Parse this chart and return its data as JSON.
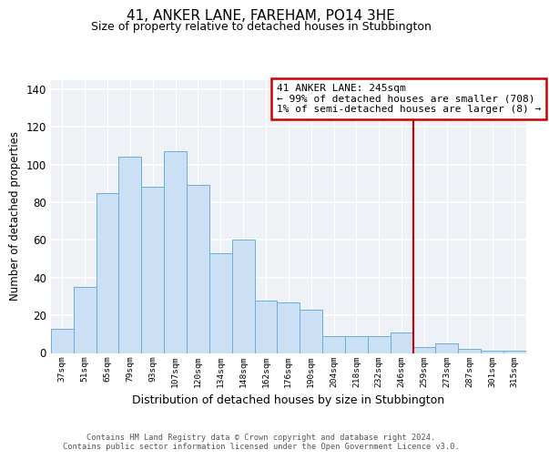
{
  "title": "41, ANKER LANE, FAREHAM, PO14 3HE",
  "subtitle": "Size of property relative to detached houses in Stubbington",
  "xlabel": "Distribution of detached houses by size in Stubbington",
  "ylabel": "Number of detached properties",
  "bar_color": "#cce0f5",
  "bar_edge_color": "#6aaed6",
  "categories": [
    "37sqm",
    "51sqm",
    "65sqm",
    "79sqm",
    "93sqm",
    "107sqm",
    "120sqm",
    "134sqm",
    "148sqm",
    "162sqm",
    "176sqm",
    "190sqm",
    "204sqm",
    "218sqm",
    "232sqm",
    "246sqm",
    "259sqm",
    "273sqm",
    "287sqm",
    "301sqm",
    "315sqm"
  ],
  "values": [
    13,
    35,
    85,
    104,
    88,
    107,
    89,
    53,
    60,
    28,
    27,
    23,
    9,
    9,
    9,
    11,
    3,
    5,
    2,
    1,
    1
  ],
  "vline_x": 15.5,
  "vline_color": "#cc0000",
  "annotation_text": "41 ANKER LANE: 245sqm\n← 99% of detached houses are smaller (708)\n1% of semi-detached houses are larger (8) →",
  "annotation_box_color": "#cc0000",
  "annotation_bg": "#ffffff",
  "ylim": [
    0,
    145
  ],
  "yticks": [
    0,
    20,
    40,
    60,
    80,
    100,
    120,
    140
  ],
  "footer_line1": "Contains HM Land Registry data © Crown copyright and database right 2024.",
  "footer_line2": "Contains public sector information licensed under the Open Government Licence v3.0.",
  "background_color": "#eef2f7",
  "grid_color": "#ffffff"
}
